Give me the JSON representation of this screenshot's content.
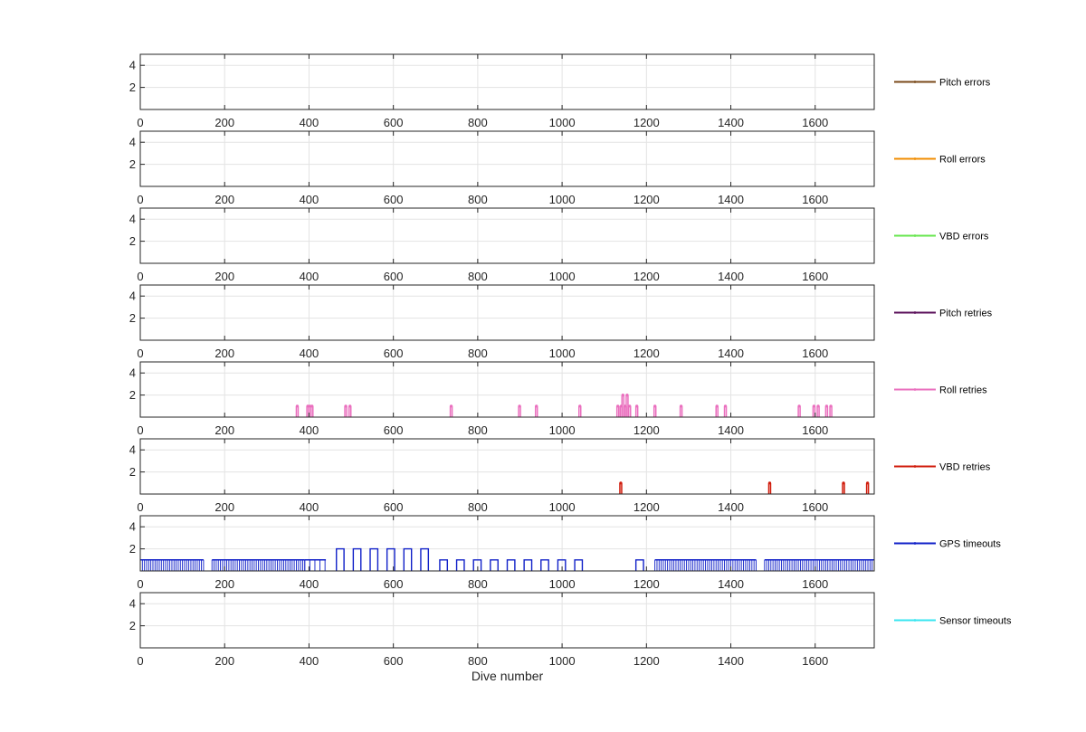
{
  "chart_data": {
    "type": "line",
    "xlabel": "Dive number",
    "xlim": [
      0,
      1740
    ],
    "ylim": [
      0,
      5
    ],
    "xticks": [
      "0",
      "200",
      "400",
      "600",
      "800",
      "1000",
      "1200",
      "1400",
      "1600"
    ],
    "yticks": [
      "2",
      "4"
    ],
    "grid": true,
    "legend_placement": "right of each panel",
    "panels": [
      {
        "name": "Pitch errors",
        "color": "#7a4a1a",
        "points": []
      },
      {
        "name": "Roll errors",
        "color": "#f08c00",
        "points": []
      },
      {
        "name": "VBD errors",
        "color": "#66e64d",
        "points": []
      },
      {
        "name": "Pitch retries",
        "color": "#5a0f5a",
        "points": []
      },
      {
        "name": "Roll retries",
        "color": "#ea6fbe",
        "points": [
          [
            370,
            1
          ],
          [
            395,
            1
          ],
          [
            400,
            1
          ],
          [
            405,
            1
          ],
          [
            485,
            1
          ],
          [
            495,
            1
          ],
          [
            735,
            1
          ],
          [
            897,
            1
          ],
          [
            937,
            1
          ],
          [
            1040,
            1
          ],
          [
            1130,
            1
          ],
          [
            1138,
            1
          ],
          [
            1142,
            2
          ],
          [
            1148,
            1
          ],
          [
            1152,
            2
          ],
          [
            1158,
            1
          ],
          [
            1175,
            1
          ],
          [
            1218,
            1
          ],
          [
            1280,
            1
          ],
          [
            1365,
            1
          ],
          [
            1385,
            1
          ],
          [
            1560,
            1
          ],
          [
            1595,
            1
          ],
          [
            1605,
            1
          ],
          [
            1625,
            1
          ],
          [
            1635,
            1
          ]
        ]
      },
      {
        "name": "VBD retries",
        "color": "#d01c0c",
        "points": [
          [
            1137,
            1
          ],
          [
            1490,
            1
          ],
          [
            1665,
            1
          ],
          [
            1722,
            1
          ]
        ]
      },
      {
        "name": "GPS timeouts",
        "color": "#1020c8",
        "segments": [
          {
            "x0": 0,
            "x1": 150,
            "density": "dense",
            "y": 1
          },
          {
            "x0": 170,
            "x1": 390,
            "density": "dense",
            "y": 1
          },
          {
            "x0": 390,
            "x1": 440,
            "density": "sparse",
            "y": 1
          },
          {
            "x0": 465,
            "x1": 710,
            "density": "pulses",
            "y": 2
          },
          {
            "x0": 710,
            "x1": 1060,
            "density": "pulses",
            "y": 1
          },
          {
            "x0": 1175,
            "x1": 1195,
            "density": "pulses",
            "y": 1
          },
          {
            "x0": 1220,
            "x1": 1460,
            "density": "dense",
            "y": 1
          },
          {
            "x0": 1480,
            "x1": 1740,
            "density": "dense",
            "y": 1
          }
        ]
      },
      {
        "name": "Sensor timeouts",
        "color": "#38e6f0",
        "points": []
      }
    ]
  }
}
